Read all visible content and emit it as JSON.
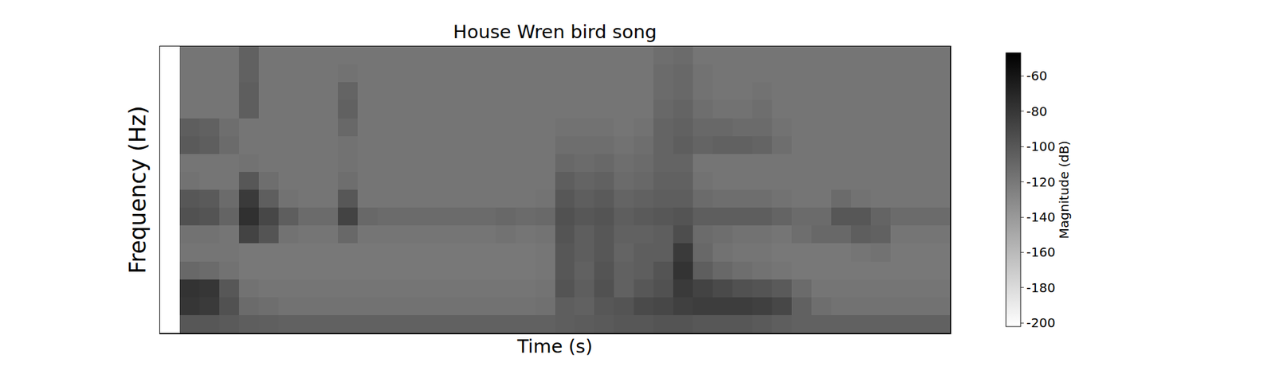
{
  "chart_data": {
    "type": "heatmap",
    "title": "House Wren bird song",
    "x_label": "Time (s)",
    "y_label": "Frequency (Hz)",
    "tick_labels": false,
    "colorbar": {
      "label": "Magnitude (dB)",
      "range": [
        -202,
        -47
      ],
      "ticks": [
        -60,
        -80,
        -100,
        -120,
        -140,
        -160,
        -180,
        -200
      ]
    },
    "z": [
      [
        null,
        -100,
        -100,
        -102,
        -104,
        -105,
        -106,
        -106,
        -106,
        -106,
        -106,
        -106,
        -106,
        -106,
        -106,
        -106,
        -106,
        -106,
        -106,
        -106,
        -104,
        -103,
        -102,
        -100,
        -100,
        -98,
        -98,
        -100,
        -100,
        -100,
        -102,
        -104,
        -106,
        -106,
        -106,
        -106,
        -106,
        -106,
        -106,
        -106
      ],
      [
        null,
        -80,
        -82,
        -96,
        -112,
        -114,
        -116,
        -116,
        -116,
        -116,
        -116,
        -116,
        -116,
        -116,
        -116,
        -116,
        -116,
        -116,
        -116,
        -115,
        -104,
        -106,
        -100,
        -98,
        -92,
        -90,
        -86,
        -84,
        -84,
        -84,
        -86,
        -90,
        -106,
        -114,
        -116,
        -116,
        -116,
        -116,
        -116,
        -116
      ],
      [
        null,
        -78,
        -80,
        -100,
        -116,
        -118,
        -118,
        -118,
        -118,
        -118,
        -118,
        -118,
        -118,
        -118,
        -118,
        -118,
        -118,
        -118,
        -118,
        -117,
        -98,
        -104,
        -96,
        -106,
        -100,
        -96,
        -82,
        -88,
        -92,
        -96,
        -98,
        -102,
        -112,
        -118,
        -118,
        -118,
        -118,
        -118,
        -118,
        -118
      ],
      [
        null,
        -110,
        -112,
        -116,
        -120,
        -120,
        -120,
        -120,
        -120,
        -120,
        -120,
        -120,
        -120,
        -120,
        -120,
        -120,
        -120,
        -120,
        -120,
        -119,
        -100,
        -106,
        -98,
        -106,
        -104,
        -98,
        -78,
        -104,
        -110,
        -114,
        -116,
        -118,
        -120,
        -120,
        -120,
        -120,
        -120,
        -120,
        -120,
        -120
      ],
      [
        null,
        -118,
        -118,
        -118,
        -120,
        -120,
        -120,
        -120,
        -120,
        -120,
        -120,
        -120,
        -120,
        -120,
        -120,
        -120,
        -120,
        -120,
        -120,
        -119,
        -100,
        -104,
        -100,
        -108,
        -104,
        -104,
        -82,
        -110,
        -116,
        -118,
        -118,
        -120,
        -120,
        -120,
        -120,
        -118,
        -116,
        -120,
        -120,
        -120
      ],
      [
        null,
        -116,
        -116,
        -118,
        -88,
        -98,
        -116,
        -118,
        -118,
        -110,
        -118,
        -118,
        -118,
        -118,
        -118,
        -118,
        -118,
        -116,
        -118,
        -117,
        -98,
        -104,
        -100,
        -106,
        -106,
        -104,
        -94,
        -112,
        -114,
        -116,
        -116,
        -118,
        -114,
        -110,
        -110,
        -104,
        -106,
        -118,
        -118,
        -118
      ],
      [
        null,
        -96,
        -98,
        -108,
        -76,
        -90,
        -104,
        -112,
        -112,
        -88,
        -110,
        -112,
        -112,
        -112,
        -112,
        -112,
        -112,
        -110,
        -112,
        -111,
        -96,
        -100,
        -98,
        -104,
        -102,
        -100,
        -98,
        -104,
        -104,
        -104,
        -104,
        -108,
        -112,
        -112,
        -100,
        -100,
        -108,
        -112,
        -112,
        -112
      ],
      [
        null,
        -100,
        -102,
        -112,
        -82,
        -104,
        -116,
        -118,
        -118,
        -100,
        -118,
        -118,
        -118,
        -118,
        -118,
        -118,
        -118,
        -118,
        -118,
        -117,
        -100,
        -104,
        -102,
        -108,
        -106,
        -104,
        -104,
        -112,
        -114,
        -114,
        -114,
        -116,
        -118,
        -118,
        -112,
        -116,
        -118,
        -118,
        -118,
        -118
      ],
      [
        null,
        -116,
        -118,
        -118,
        -100,
        -114,
        -118,
        -118,
        -118,
        -114,
        -118,
        -118,
        -118,
        -118,
        -118,
        -118,
        -118,
        -118,
        -118,
        -118,
        -104,
        -108,
        -106,
        -112,
        -110,
        -106,
        -106,
        -116,
        -118,
        -118,
        -118,
        -118,
        -118,
        -118,
        -118,
        -118,
        -118,
        -118,
        -118,
        -118
      ],
      [
        null,
        -118,
        -118,
        -118,
        -116,
        -118,
        -118,
        -118,
        -118,
        -116,
        -118,
        -118,
        -118,
        -118,
        -118,
        -118,
        -118,
        -118,
        -118,
        -118,
        -110,
        -112,
        -110,
        -114,
        -112,
        -108,
        -108,
        -118,
        -118,
        -118,
        -118,
        -118,
        -118,
        -118,
        -118,
        -118,
        -118,
        -118,
        -118,
        -118
      ],
      [
        null,
        -102,
        -104,
        -112,
        -118,
        -118,
        -118,
        -118,
        -118,
        -116,
        -118,
        -118,
        -118,
        -118,
        -118,
        -118,
        -118,
        -118,
        -118,
        -118,
        -114,
        -114,
        -114,
        -116,
        -114,
        -108,
        -104,
        -108,
        -106,
        -106,
        -108,
        -114,
        -118,
        -118,
        -118,
        -118,
        -118,
        -118,
        -118,
        -118
      ],
      [
        null,
        -104,
        -106,
        -114,
        -118,
        -118,
        -118,
        -118,
        -118,
        -110,
        -118,
        -118,
        -118,
        -118,
        -118,
        -118,
        -118,
        -118,
        -118,
        -118,
        -116,
        -116,
        -116,
        -118,
        -116,
        -108,
        -106,
        -110,
        -110,
        -112,
        -112,
        -116,
        -118,
        -118,
        -118,
        -118,
        -118,
        -118,
        -118,
        -118
      ],
      [
        null,
        -118,
        -118,
        -118,
        -104,
        -118,
        -118,
        -118,
        -118,
        -106,
        -118,
        -118,
        -118,
        -118,
        -118,
        -118,
        -118,
        -118,
        -118,
        -118,
        -118,
        -118,
        -118,
        -118,
        -118,
        -110,
        -108,
        -114,
        -116,
        -116,
        -114,
        -118,
        -118,
        -118,
        -118,
        -118,
        -118,
        -118,
        -118,
        -118
      ],
      [
        null,
        -118,
        -118,
        -118,
        -104,
        -118,
        -118,
        -118,
        -118,
        -108,
        -118,
        -118,
        -118,
        -118,
        -118,
        -118,
        -118,
        -118,
        -118,
        -118,
        -118,
        -118,
        -118,
        -118,
        -118,
        -112,
        -110,
        -116,
        -118,
        -118,
        -116,
        -118,
        -118,
        -118,
        -118,
        -118,
        -118,
        -118,
        -118,
        -118
      ],
      [
        null,
        -118,
        -118,
        -118,
        -106,
        -118,
        -118,
        -118,
        -118,
        -116,
        -118,
        -118,
        -118,
        -118,
        -118,
        -118,
        -118,
        -118,
        -118,
        -118,
        -118,
        -118,
        -118,
        -118,
        -118,
        -112,
        -110,
        -116,
        -118,
        -118,
        -118,
        -118,
        -118,
        -118,
        -118,
        -118,
        -118,
        -118,
        -118,
        -118
      ],
      [
        null,
        -118,
        -118,
        -118,
        -106,
        -118,
        -118,
        -118,
        -118,
        -118,
        -118,
        -118,
        -118,
        -118,
        -118,
        -118,
        -118,
        -118,
        -118,
        -118,
        -118,
        -118,
        -118,
        -118,
        -118,
        -114,
        -112,
        -118,
        -118,
        -118,
        -118,
        -118,
        -118,
        -118,
        -118,
        -118,
        -118,
        -118,
        -118,
        -118
      ]
    ]
  }
}
